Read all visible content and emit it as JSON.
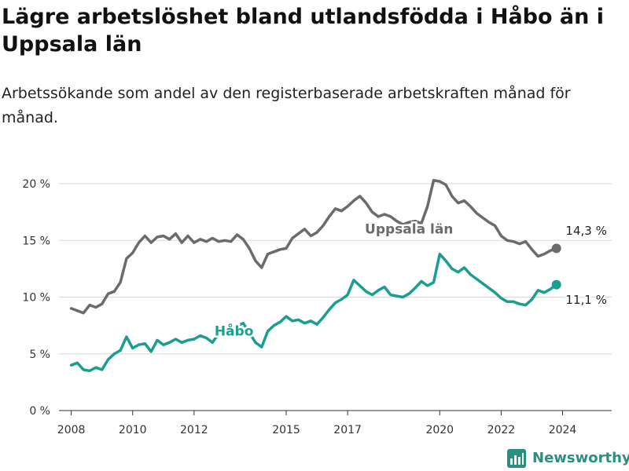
{
  "header": {
    "title": "Lägre arbetslöshet bland utlandsfödda i Håbo än i Uppsala län",
    "subtitle": "Arbetssökande som andel av den registerbaserade arbetskraften månad för månad."
  },
  "brand": {
    "name": "Newsworthy"
  },
  "colors": {
    "uppsala": "#6b6b6b",
    "habo": "#1a9e90",
    "grid": "#d8d8d8"
  },
  "chart_data": {
    "type": "line",
    "title": "Lägre arbetslöshet bland utlandsfödda i Håbo än i Uppsala län",
    "subtitle": "Arbetssökande som andel av den registerbaserade arbetskraften månad för månad.",
    "ylim": [
      0,
      20
    ],
    "y_ticks": [
      "0 %",
      "5 %",
      "10 %",
      "15 %",
      "20 %"
    ],
    "y_tick_values": [
      0,
      5,
      10,
      15,
      20
    ],
    "x_ticks": [
      "2008",
      "2010",
      "2012",
      "2015",
      "2017",
      "2020",
      "2022",
      "2024"
    ],
    "x_tick_values": [
      2008,
      2010,
      2012,
      2015,
      2017,
      2020,
      2022,
      2024
    ],
    "xlim": [
      2007.6,
      2025.6
    ],
    "grid": "horizontal",
    "legend": "inline labels",
    "series": [
      {
        "name": "Uppsala län",
        "color": "#6b6b6b",
        "end_label": "14,3 %",
        "points": [
          [
            2008.0,
            9.0
          ],
          [
            2008.2,
            8.8
          ],
          [
            2008.4,
            8.6
          ],
          [
            2008.6,
            9.3
          ],
          [
            2008.8,
            9.1
          ],
          [
            2009.0,
            9.4
          ],
          [
            2009.2,
            10.3
          ],
          [
            2009.4,
            10.5
          ],
          [
            2009.6,
            11.3
          ],
          [
            2009.8,
            13.4
          ],
          [
            2010.0,
            13.9
          ],
          [
            2010.2,
            14.8
          ],
          [
            2010.4,
            15.4
          ],
          [
            2010.6,
            14.8
          ],
          [
            2010.8,
            15.3
          ],
          [
            2011.0,
            15.4
          ],
          [
            2011.2,
            15.1
          ],
          [
            2011.4,
            15.6
          ],
          [
            2011.6,
            14.8
          ],
          [
            2011.8,
            15.4
          ],
          [
            2012.0,
            14.8
          ],
          [
            2012.2,
            15.1
          ],
          [
            2012.4,
            14.9
          ],
          [
            2012.6,
            15.2
          ],
          [
            2012.8,
            14.9
          ],
          [
            2013.0,
            15.0
          ],
          [
            2013.2,
            14.9
          ],
          [
            2013.4,
            15.5
          ],
          [
            2013.6,
            15.1
          ],
          [
            2013.8,
            14.3
          ],
          [
            2014.0,
            13.2
          ],
          [
            2014.2,
            12.6
          ],
          [
            2014.4,
            13.8
          ],
          [
            2014.6,
            14.0
          ],
          [
            2014.8,
            14.2
          ],
          [
            2015.0,
            14.3
          ],
          [
            2015.2,
            15.2
          ],
          [
            2015.4,
            15.6
          ],
          [
            2015.6,
            16.0
          ],
          [
            2015.8,
            15.4
          ],
          [
            2016.0,
            15.7
          ],
          [
            2016.2,
            16.3
          ],
          [
            2016.4,
            17.1
          ],
          [
            2016.6,
            17.8
          ],
          [
            2016.8,
            17.6
          ],
          [
            2017.0,
            18.0
          ],
          [
            2017.2,
            18.5
          ],
          [
            2017.4,
            18.9
          ],
          [
            2017.6,
            18.3
          ],
          [
            2017.8,
            17.5
          ],
          [
            2018.0,
            17.1
          ],
          [
            2018.2,
            17.3
          ],
          [
            2018.4,
            17.1
          ],
          [
            2018.6,
            16.7
          ],
          [
            2018.8,
            16.4
          ],
          [
            2019.0,
            16.6
          ],
          [
            2019.2,
            16.7
          ],
          [
            2019.4,
            16.5
          ],
          [
            2019.6,
            18.0
          ],
          [
            2019.8,
            20.3
          ],
          [
            2020.0,
            20.2
          ],
          [
            2020.2,
            19.9
          ],
          [
            2020.4,
            18.9
          ],
          [
            2020.6,
            18.3
          ],
          [
            2020.8,
            18.5
          ],
          [
            2021.0,
            18.0
          ],
          [
            2021.2,
            17.4
          ],
          [
            2021.4,
            17.0
          ],
          [
            2021.6,
            16.6
          ],
          [
            2021.8,
            16.3
          ],
          [
            2022.0,
            15.4
          ],
          [
            2022.2,
            15.0
          ],
          [
            2022.4,
            14.9
          ],
          [
            2022.6,
            14.7
          ],
          [
            2022.8,
            14.9
          ],
          [
            2023.0,
            14.2
          ],
          [
            2023.2,
            13.6
          ],
          [
            2023.4,
            13.8
          ],
          [
            2023.6,
            14.1
          ],
          [
            2023.8,
            14.3
          ]
        ]
      },
      {
        "name": "Håbo",
        "color": "#1a9e90",
        "end_label": "11,1 %",
        "points": [
          [
            2008.0,
            4.0
          ],
          [
            2008.2,
            4.2
          ],
          [
            2008.4,
            3.6
          ],
          [
            2008.6,
            3.5
          ],
          [
            2008.8,
            3.8
          ],
          [
            2009.0,
            3.6
          ],
          [
            2009.2,
            4.5
          ],
          [
            2009.4,
            5.0
          ],
          [
            2009.6,
            5.3
          ],
          [
            2009.8,
            6.5
          ],
          [
            2010.0,
            5.5
          ],
          [
            2010.2,
            5.8
          ],
          [
            2010.4,
            5.9
          ],
          [
            2010.6,
            5.2
          ],
          [
            2010.8,
            6.2
          ],
          [
            2011.0,
            5.8
          ],
          [
            2011.2,
            6.0
          ],
          [
            2011.4,
            6.3
          ],
          [
            2011.6,
            6.0
          ],
          [
            2011.8,
            6.2
          ],
          [
            2012.0,
            6.3
          ],
          [
            2012.2,
            6.6
          ],
          [
            2012.4,
            6.4
          ],
          [
            2012.6,
            6.0
          ],
          [
            2012.8,
            6.8
          ],
          [
            2013.6,
            7.7
          ],
          [
            2014.0,
            6.0
          ],
          [
            2014.2,
            5.6
          ],
          [
            2014.4,
            7.0
          ],
          [
            2014.6,
            7.5
          ],
          [
            2014.8,
            7.8
          ],
          [
            2015.0,
            8.3
          ],
          [
            2015.2,
            7.9
          ],
          [
            2015.4,
            8.0
          ],
          [
            2015.6,
            7.7
          ],
          [
            2015.8,
            7.9
          ],
          [
            2016.0,
            7.6
          ],
          [
            2016.2,
            8.2
          ],
          [
            2016.4,
            8.9
          ],
          [
            2016.6,
            9.5
          ],
          [
            2016.8,
            9.8
          ],
          [
            2017.0,
            10.2
          ],
          [
            2017.2,
            11.5
          ],
          [
            2017.4,
            11.0
          ],
          [
            2017.6,
            10.5
          ],
          [
            2017.8,
            10.2
          ],
          [
            2018.0,
            10.6
          ],
          [
            2018.2,
            10.9
          ],
          [
            2018.4,
            10.2
          ],
          [
            2018.6,
            10.1
          ],
          [
            2018.8,
            10.0
          ],
          [
            2019.0,
            10.3
          ],
          [
            2019.2,
            10.8
          ],
          [
            2019.4,
            11.4
          ],
          [
            2019.6,
            11.0
          ],
          [
            2019.8,
            11.3
          ],
          [
            2020.0,
            13.8
          ],
          [
            2020.2,
            13.2
          ],
          [
            2020.4,
            12.5
          ],
          [
            2020.6,
            12.2
          ],
          [
            2020.8,
            12.6
          ],
          [
            2021.0,
            12.0
          ],
          [
            2021.2,
            11.6
          ],
          [
            2021.4,
            11.2
          ],
          [
            2021.6,
            10.8
          ],
          [
            2021.8,
            10.4
          ],
          [
            2022.0,
            9.9
          ],
          [
            2022.2,
            9.6
          ],
          [
            2022.4,
            9.6
          ],
          [
            2022.6,
            9.4
          ],
          [
            2022.8,
            9.3
          ],
          [
            2023.0,
            9.8
          ],
          [
            2023.2,
            10.6
          ],
          [
            2023.4,
            10.4
          ],
          [
            2023.6,
            10.7
          ],
          [
            2023.8,
            11.1
          ]
        ]
      }
    ]
  }
}
